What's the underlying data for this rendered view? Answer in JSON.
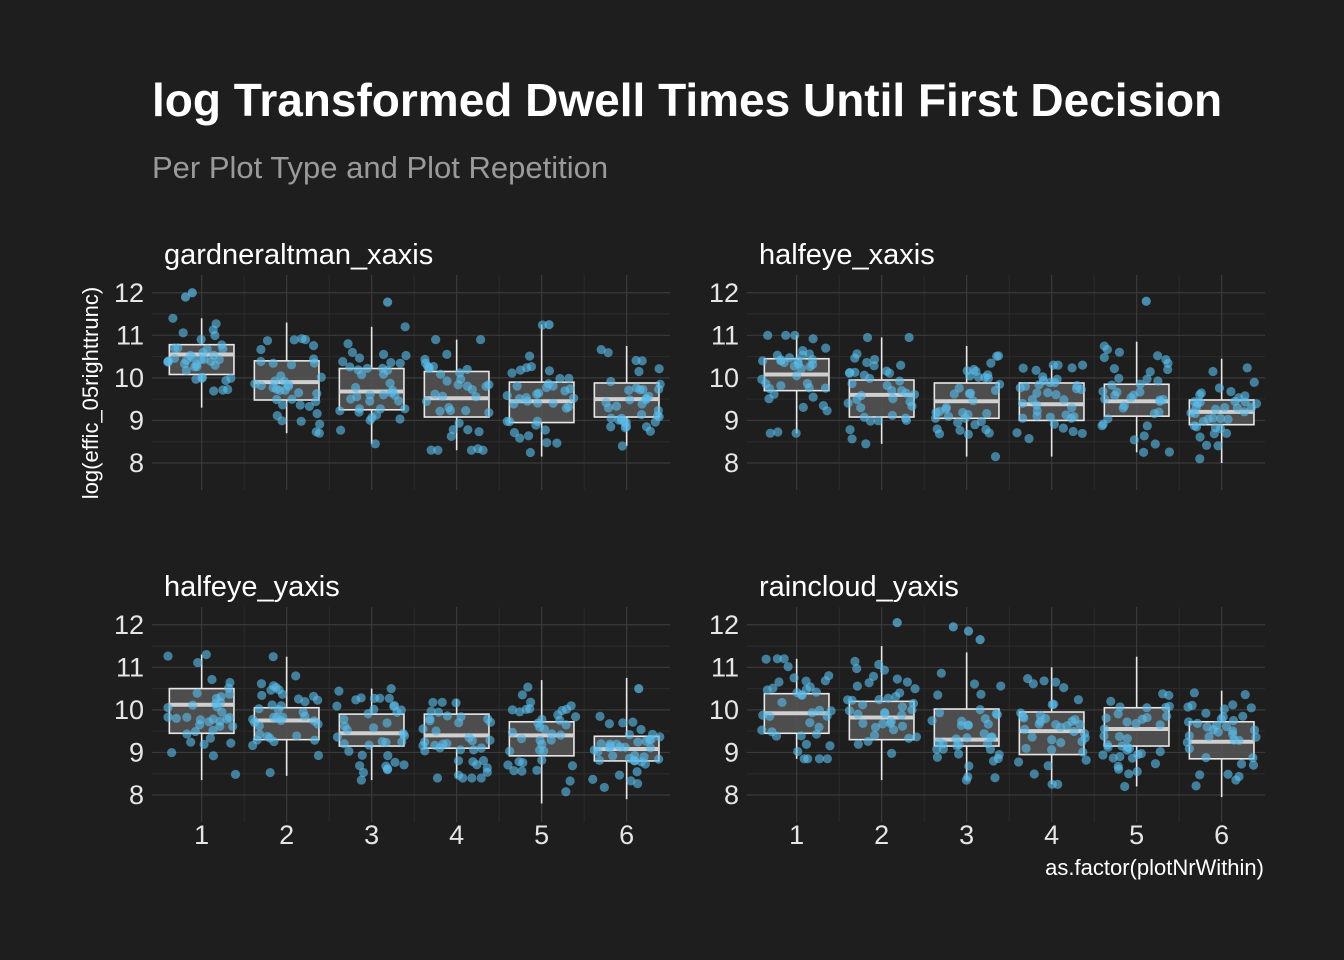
{
  "colors": {
    "background": "#1e1e1e",
    "points": "#5bbbe8",
    "box_fill": "#565656",
    "box_stroke": "#e8e8e8",
    "median": "#d0d0d0",
    "grid": "#3a3a3a"
  },
  "chart_data": {
    "type": "boxplot",
    "title": "log Transformed Dwell Times Until First Decision",
    "subtitle": "Per Plot Type and Plot Repetition",
    "xlabel": "as.factor(plotNrWithin)",
    "ylabel": "log(effic_05righttrunc)",
    "categories": [
      "1",
      "2",
      "3",
      "4",
      "5",
      "6"
    ],
    "y_ticks": [
      "8",
      "9",
      "10",
      "11",
      "12"
    ],
    "ylim": [
      7.6,
      12.3
    ],
    "grid": true,
    "facets": [
      {
        "name": "gardneraltman_xaxis",
        "boxes": [
          {
            "q1": 10.08,
            "median": 10.55,
            "q3": 10.78,
            "min": 9.3,
            "max": 11.4
          },
          {
            "q1": 9.48,
            "median": 9.9,
            "q3": 10.4,
            "min": 8.7,
            "max": 11.3
          },
          {
            "q1": 9.25,
            "median": 9.68,
            "q3": 10.22,
            "min": 8.45,
            "max": 11.2
          },
          {
            "q1": 9.08,
            "median": 9.52,
            "q3": 10.15,
            "min": 8.3,
            "max": 10.9
          },
          {
            "q1": 8.95,
            "median": 9.45,
            "q3": 9.9,
            "min": 8.15,
            "max": 11.25
          },
          {
            "q1": 9.08,
            "median": 9.5,
            "q3": 9.88,
            "min": 8.4,
            "max": 10.75
          }
        ],
        "outliers": [
          {
            "cat": 1,
            "y": 12.0
          },
          {
            "cat": 1,
            "y": 11.9
          },
          {
            "cat": 3,
            "y": 11.78
          },
          {
            "cat": 5,
            "y": 11.25
          }
        ]
      },
      {
        "name": "halfeye_xaxis",
        "boxes": [
          {
            "q1": 9.7,
            "median": 10.08,
            "q3": 10.45,
            "min": 8.7,
            "max": 11.0
          },
          {
            "q1": 9.08,
            "median": 9.6,
            "q3": 9.95,
            "min": 8.45,
            "max": 10.95
          },
          {
            "q1": 9.05,
            "median": 9.45,
            "q3": 9.88,
            "min": 8.15,
            "max": 10.75
          },
          {
            "q1": 9.0,
            "median": 9.38,
            "q3": 9.88,
            "min": 8.15,
            "max": 10.3
          },
          {
            "q1": 9.1,
            "median": 9.45,
            "q3": 9.85,
            "min": 8.25,
            "max": 10.85
          },
          {
            "q1": 8.9,
            "median": 9.2,
            "q3": 9.48,
            "min": 8.0,
            "max": 10.45
          }
        ],
        "outliers": [
          {
            "cat": 5,
            "y": 11.8
          }
        ]
      },
      {
        "name": "halfeye_yaxis",
        "boxes": [
          {
            "q1": 9.45,
            "median": 10.12,
            "q3": 10.5,
            "min": 8.35,
            "max": 11.3
          },
          {
            "q1": 9.3,
            "median": 9.75,
            "q3": 10.05,
            "min": 8.45,
            "max": 11.25
          },
          {
            "q1": 9.15,
            "median": 9.45,
            "q3": 9.9,
            "min": 8.35,
            "max": 10.5
          },
          {
            "q1": 9.1,
            "median": 9.4,
            "q3": 9.9,
            "min": 8.4,
            "max": 10.25
          },
          {
            "q1": 8.92,
            "median": 9.4,
            "q3": 9.72,
            "min": 7.8,
            "max": 10.7
          },
          {
            "q1": 8.8,
            "median": 9.08,
            "q3": 9.38,
            "min": 7.9,
            "max": 10.75
          }
        ],
        "outliers": [
          {
            "cat": 6,
            "y": 10.5
          }
        ]
      },
      {
        "name": "raincloud_yaxis",
        "boxes": [
          {
            "q1": 9.45,
            "median": 9.92,
            "q3": 10.38,
            "min": 8.85,
            "max": 11.2
          },
          {
            "q1": 9.3,
            "median": 9.82,
            "q3": 10.2,
            "min": 8.35,
            "max": 11.5
          },
          {
            "q1": 9.15,
            "median": 9.3,
            "q3": 10.02,
            "min": 8.35,
            "max": 11.35
          },
          {
            "q1": 8.95,
            "median": 9.5,
            "q3": 9.95,
            "min": 8.25,
            "max": 11.0
          },
          {
            "q1": 9.15,
            "median": 9.55,
            "q3": 10.05,
            "min": 8.2,
            "max": 11.25
          },
          {
            "q1": 8.85,
            "median": 9.25,
            "q3": 9.72,
            "min": 7.95,
            "max": 10.45
          }
        ],
        "outliers": [
          {
            "cat": 2,
            "y": 12.05
          },
          {
            "cat": 3,
            "y": 11.95
          },
          {
            "cat": 3,
            "y": 11.85
          },
          {
            "cat": 3,
            "y": 11.65
          }
        ]
      }
    ]
  }
}
